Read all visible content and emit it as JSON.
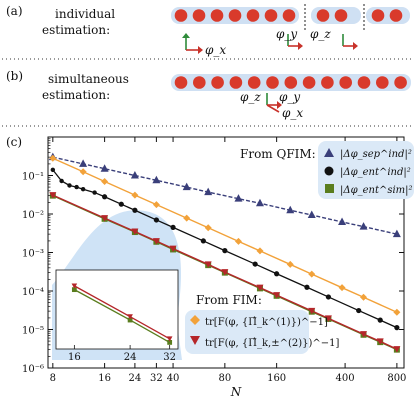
{
  "panel_a": {
    "tag": "(a)",
    "label_line1": "individual",
    "label_line2": "estimation:",
    "axis_labels": [
      "φ_x",
      "φ_y",
      "φ_z"
    ]
  },
  "panel_b": {
    "tag": "(b)",
    "label_line1": "simultaneous",
    "label_line2": "estimation:",
    "axis_labels": [
      "φ_z",
      "φ_y",
      "φ_x"
    ]
  },
  "panel_c": {
    "tag": "(c)",
    "qfim_title": "From QFIM:",
    "fim_title": "From FIM:",
    "legend_qfim": [
      "|Δφ_sep^ind|²",
      "|Δφ_ent^ind|²",
      "|Δφ_ent^sim|²"
    ],
    "legend_fim": [
      "tr[F(φ, {Π̂_k^(1)})^−1]",
      "tr[F(φ, {Π̂_k,±^(2)})^−1]"
    ]
  },
  "colors": {
    "atom": "#d93a2b",
    "atom_band": "#cfe0f3",
    "axis_red": "#c8322a",
    "axis_green": "#2e8b3a",
    "sep": "#3a3f7a",
    "ent_ind": "#111111",
    "ent_sim": "#5a7d1e",
    "fim1": "#f2a23a",
    "fim2": "#b5262a",
    "shade": "#cfe3f6",
    "legend_bg": "#dbe9f7"
  },
  "chart_data": {
    "type": "line",
    "xscale": "log",
    "yscale": "log",
    "xlabel": "N",
    "xlim": [
      7.5,
      880
    ],
    "ylim": [
      1e-06,
      1.0
    ],
    "xticks": [
      8,
      16,
      24,
      32,
      40,
      80,
      160,
      400,
      800
    ],
    "xtick_labels": [
      "8",
      "16",
      "24",
      "32",
      "40",
      "80",
      "160",
      "400",
      "800"
    ],
    "yticks": [
      1e-06,
      1e-05,
      0.0001,
      0.001,
      0.01,
      0.1
    ],
    "ytick_labels": [
      "10⁻⁶",
      "10⁻⁵",
      "10⁻⁴",
      "10⁻³",
      "10⁻²",
      "10⁻¹"
    ],
    "series": [
      {
        "key": "sep",
        "style": "dashed-triangle",
        "x": [
          8,
          12,
          16,
          24,
          32,
          48,
          64,
          96,
          128,
          192,
          256,
          384,
          512,
          800
        ],
        "y": [
          0.3,
          0.2,
          0.15,
          0.1,
          0.075,
          0.05,
          0.037,
          0.025,
          0.019,
          0.0125,
          0.0094,
          0.0062,
          0.0047,
          0.003
        ]
      },
      {
        "key": "ent_ind",
        "style": "line-dots",
        "x": [
          8,
          9,
          10,
          11,
          12,
          14,
          16,
          20,
          24,
          32,
          40,
          60,
          80,
          120,
          160,
          240,
          320,
          480,
          640,
          800
        ],
        "y": [
          0.14,
          0.072,
          0.055,
          0.05,
          0.044,
          0.036,
          0.028,
          0.018,
          0.0125,
          0.007,
          0.0045,
          0.002,
          0.00112,
          0.0005,
          0.00028,
          0.000125,
          7e-05,
          3.1e-05,
          1.75e-05,
          1.12e-05
        ]
      },
      {
        "key": "ent_sim",
        "style": "line-squares",
        "x": [
          8,
          16,
          24,
          32,
          40,
          64,
          80,
          128,
          160,
          256,
          320,
          512,
          640,
          800
        ],
        "y": [
          0.03,
          0.0075,
          0.0034,
          0.0019,
          0.0012,
          0.00047,
          0.0003,
          0.000117,
          7.5e-05,
          2.9e-05,
          1.88e-05,
          7.3e-06,
          4.7e-06,
          3e-06
        ]
      },
      {
        "key": "fim1",
        "style": "line-diamonds",
        "x": [
          8,
          12,
          16,
          24,
          32,
          48,
          64,
          96,
          128,
          192,
          256,
          384,
          512,
          800
        ],
        "y": [
          0.28,
          0.125,
          0.07,
          0.031,
          0.0175,
          0.0078,
          0.0044,
          0.00195,
          0.0011,
          0.00049,
          0.000275,
          0.000122,
          6.87e-05,
          2.81e-05
        ]
      },
      {
        "key": "fim2",
        "style": "line-tri-down",
        "x": [
          8,
          16,
          24,
          32,
          40,
          64,
          80,
          128,
          160,
          256,
          320,
          512,
          640,
          800
        ],
        "y": [
          0.031,
          0.0078,
          0.0035,
          0.00197,
          0.00126,
          0.00049,
          0.00031,
          0.000122,
          7.8e-05,
          3.05e-05,
          1.95e-05,
          7.6e-06,
          4.9e-06,
          3.1e-06
        ]
      }
    ],
    "inset": {
      "xlim": [
        14,
        34
      ],
      "xticks": [
        16,
        24,
        32
      ],
      "xtick_labels": [
        "16",
        "24",
        "32"
      ]
    }
  }
}
